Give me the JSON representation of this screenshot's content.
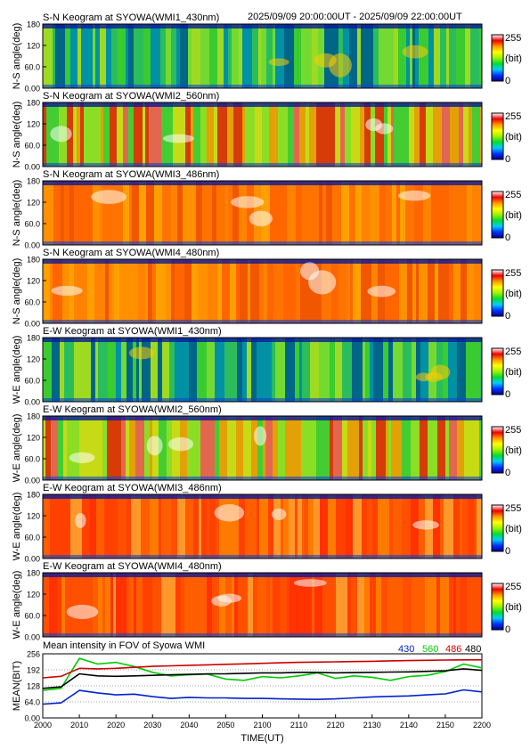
{
  "header": {
    "date_range": "2025/09/09 20:00:00UT - 2025/09/09 22:00:00UT"
  },
  "colorbar": {
    "max_label": "255",
    "unit_label": "(bit)",
    "min_label": "0",
    "stops": [
      "#00008b",
      "#0033ff",
      "#00ccff",
      "#00dd33",
      "#a0f000",
      "#ffff00",
      "#ff9900",
      "#ee0000",
      "#ffffff"
    ]
  },
  "keogram_axis": {
    "ticks": [
      "0.00",
      "60.0",
      "120",
      "180"
    ]
  },
  "panels": [
    {
      "title": "S-N Keogram at SYOWA(WMI1_430nm)",
      "ylabel": "N-S angle(deg)",
      "palette": "green"
    },
    {
      "title": "S-N Keogram at SYOWA(WMI2_560nm)",
      "ylabel": "N-S angle(deg)",
      "palette": "mixed"
    },
    {
      "title": "S-N Keogram at SYOWA(WMI3_486nm)",
      "ylabel": "N-S angle(deg)",
      "palette": "orange"
    },
    {
      "title": "S-N Keogram at SYOWA(WMI4_480nm)",
      "ylabel": "N-S angle(deg)",
      "palette": "orange"
    },
    {
      "title": "E-W Keogram at SYOWA(WMI1_430nm)",
      "ylabel": "W-E angle(deg)",
      "palette": "green"
    },
    {
      "title": "E-W Keogram at SYOWA(WMI2_560nm)",
      "ylabel": "W-E angle(deg)",
      "palette": "mixed"
    },
    {
      "title": "E-W Keogram at SYOWA(WMI3_486nm)",
      "ylabel": "W-E angle(deg)",
      "palette": "red"
    },
    {
      "title": "E-W Keogram at SYOWA(WMI4_480nm)",
      "ylabel": "W-E angle(deg)",
      "palette": "red"
    }
  ],
  "chart_data": {
    "type": "line",
    "title": "Mean intensity in FOV of Syowa WMI",
    "xlabel": "TIME(UT)",
    "ylabel": "MEAN(BIT)",
    "x_ticks": [
      "2000",
      "2010",
      "2020",
      "2030",
      "2040",
      "2050",
      "2100",
      "2110",
      "2120",
      "2130",
      "2140",
      "2150",
      "2200"
    ],
    "y_ticks": [
      "0.00",
      "64.0",
      "128",
      "192",
      "256"
    ],
    "xlim_minutes": [
      0,
      120
    ],
    "ylim": [
      0,
      256
    ],
    "legend_position": "top-right",
    "x_minutes": [
      0,
      5,
      10,
      15,
      20,
      25,
      30,
      35,
      40,
      45,
      50,
      55,
      60,
      65,
      70,
      75,
      80,
      85,
      90,
      95,
      100,
      105,
      110,
      115,
      120
    ],
    "series": [
      {
        "name": "430",
        "color": "#0022cc",
        "values": [
          55,
          60,
          110,
          100,
          92,
          95,
          85,
          78,
          82,
          80,
          80,
          78,
          78,
          76,
          75,
          74,
          76,
          80,
          84,
          86,
          88,
          92,
          96,
          112,
          104
        ]
      },
      {
        "name": "560",
        "color": "#00cc00",
        "values": [
          110,
          118,
          238,
          215,
          222,
          205,
          182,
          168,
          172,
          175,
          155,
          150,
          165,
          160,
          168,
          180,
          158,
          168,
          162,
          150,
          165,
          170,
          185,
          215,
          200
        ]
      },
      {
        "name": "486",
        "color": "#cc0000",
        "values": [
          160,
          166,
          198,
          196,
          198,
          202,
          206,
          208,
          210,
          212,
          214,
          216,
          218,
          220,
          222,
          223,
          224,
          225,
          226,
          228,
          229,
          230,
          231,
          232,
          232
        ]
      },
      {
        "name": "480",
        "color": "#000000",
        "values": [
          118,
          124,
          176,
          168,
          166,
          168,
          170,
          172,
          174,
          176,
          176,
          178,
          180,
          180,
          182,
          182,
          180,
          181,
          182,
          183,
          184,
          186,
          188,
          196,
          190
        ]
      }
    ]
  }
}
